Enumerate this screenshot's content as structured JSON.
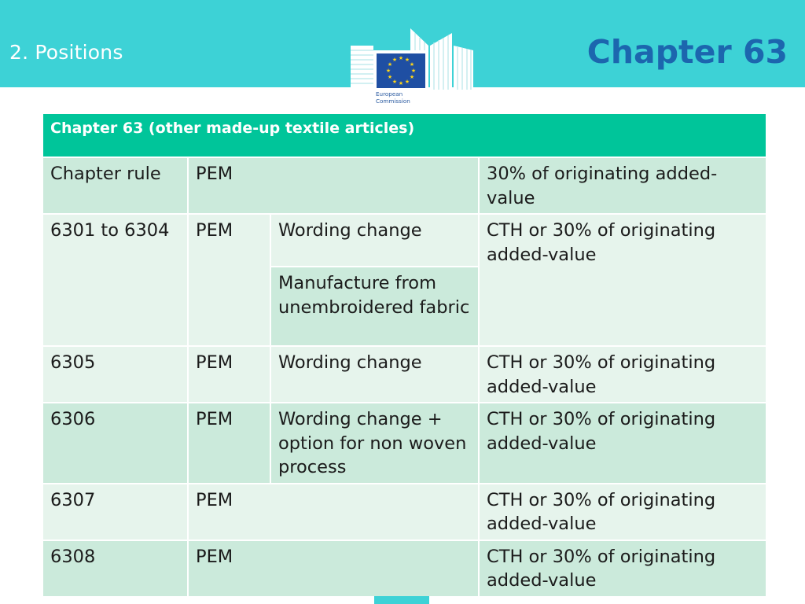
{
  "header": {
    "section_label": "2. Positions",
    "title": "Chapter 63",
    "logo_text": [
      "European",
      "Commission"
    ]
  },
  "colors": {
    "header_band": "#3dd2d6",
    "title": "#1c66ae",
    "table_header": "#00c59a",
    "row_dark": "#cbeadb",
    "row_light": "#e6f4ec"
  },
  "table": {
    "title": "Chapter 63 (other made-up textile articles)",
    "rows": [
      {
        "heading": "Chapter rule",
        "origin": "PEM",
        "rule": "30% of originating added-value"
      },
      {
        "heading": "6301 to 6304",
        "origin": "PEM",
        "changes": [
          "Wording change",
          "Manufacture from unembroidered fabric"
        ],
        "rule": "CTH or 30% of originating added-value"
      },
      {
        "heading": "6305",
        "origin": "PEM",
        "change": "Wording change",
        "rule": "CTH or 30% of originating added-value"
      },
      {
        "heading": "6306",
        "origin": "PEM",
        "change": "Wording change + option for non woven process",
        "rule": "CTH or 30% of originating added-value"
      },
      {
        "heading": "6307",
        "origin": "PEM",
        "rule": "CTH or 30% of originating added-value"
      },
      {
        "heading": "6308",
        "origin": "PEM",
        "rule": "CTH or 30% of originating added-value"
      }
    ]
  }
}
